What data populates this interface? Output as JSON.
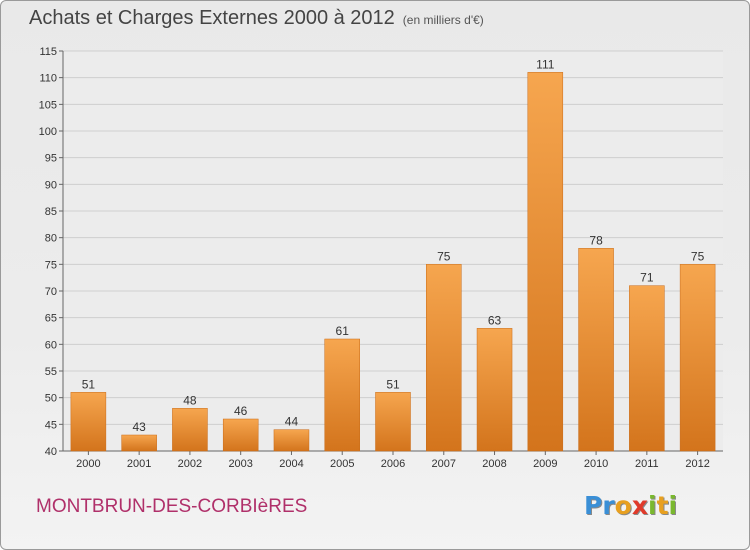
{
  "header": {
    "title": "Achats et Charges Externes 2000 à 2012",
    "subtitle": "(en milliers d'€)"
  },
  "footer": {
    "place": "MONTBRUN-DES-CORBIèRES",
    "logo_letters": [
      {
        "char": "P",
        "color": "#3a8fd6"
      },
      {
        "char": "r",
        "color": "#3a8fd6"
      },
      {
        "char": "o",
        "color": "#e8a020"
      },
      {
        "char": "x",
        "color": "#e03a2a"
      },
      {
        "char": "i",
        "color": "#7ab82e"
      },
      {
        "char": "t",
        "color": "#e8a020"
      },
      {
        "char": "i",
        "color": "#7ab82e"
      }
    ]
  },
  "chart_data": {
    "type": "bar",
    "title": "Achats et Charges Externes 2000 à 2012",
    "subtitle": "(en milliers d'€)",
    "categories": [
      "2000",
      "2001",
      "2002",
      "2003",
      "2004",
      "2005",
      "2006",
      "2007",
      "2008",
      "2009",
      "2010",
      "2011",
      "2012"
    ],
    "values": [
      51,
      43,
      48,
      46,
      44,
      61,
      51,
      75,
      63,
      111,
      78,
      71,
      75
    ],
    "ylim": [
      40,
      115
    ],
    "yticks": [
      40,
      45,
      50,
      55,
      60,
      65,
      70,
      75,
      80,
      85,
      90,
      95,
      100,
      105,
      110,
      115
    ],
    "grid": true,
    "bar_color_top": "#f6a64f",
    "bar_color_bottom": "#d3741c"
  }
}
